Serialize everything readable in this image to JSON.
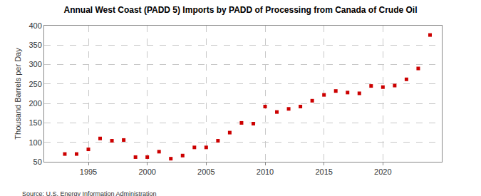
{
  "chart_data": {
    "type": "scatter",
    "title": "Annual West Coast (PADD 5) Imports by PADD of Processing from Canada of Crude Oil",
    "y_label": "Thousand Barrels per Day",
    "source": "Source: U.S. Energy Information Administration",
    "x": [
      1993,
      1994,
      1995,
      1996,
      1997,
      1998,
      1999,
      2000,
      2001,
      2002,
      2003,
      2004,
      2005,
      2006,
      2007,
      2008,
      2009,
      2010,
      2011,
      2012,
      2013,
      2014,
      2015,
      2016,
      2017,
      2018,
      2019,
      2020,
      2021,
      2022,
      2023,
      2024
    ],
    "values": [
      70,
      70,
      82,
      110,
      104,
      106,
      62,
      62,
      76,
      58,
      66,
      87,
      87,
      104,
      125,
      150,
      148,
      192,
      178,
      186,
      192,
      207,
      222,
      232,
      228,
      226,
      245,
      242,
      246,
      262,
      290,
      376
    ],
    "color": "#cc0000",
    "marker": "square",
    "xlim": [
      1991.25,
      2025
    ],
    "xticks": [
      1995,
      2000,
      2005,
      2010,
      2015,
      2020
    ],
    "ylim": [
      50,
      400
    ],
    "yticks": [
      50,
      100,
      150,
      200,
      250,
      300,
      350,
      400
    ],
    "grid": true
  }
}
